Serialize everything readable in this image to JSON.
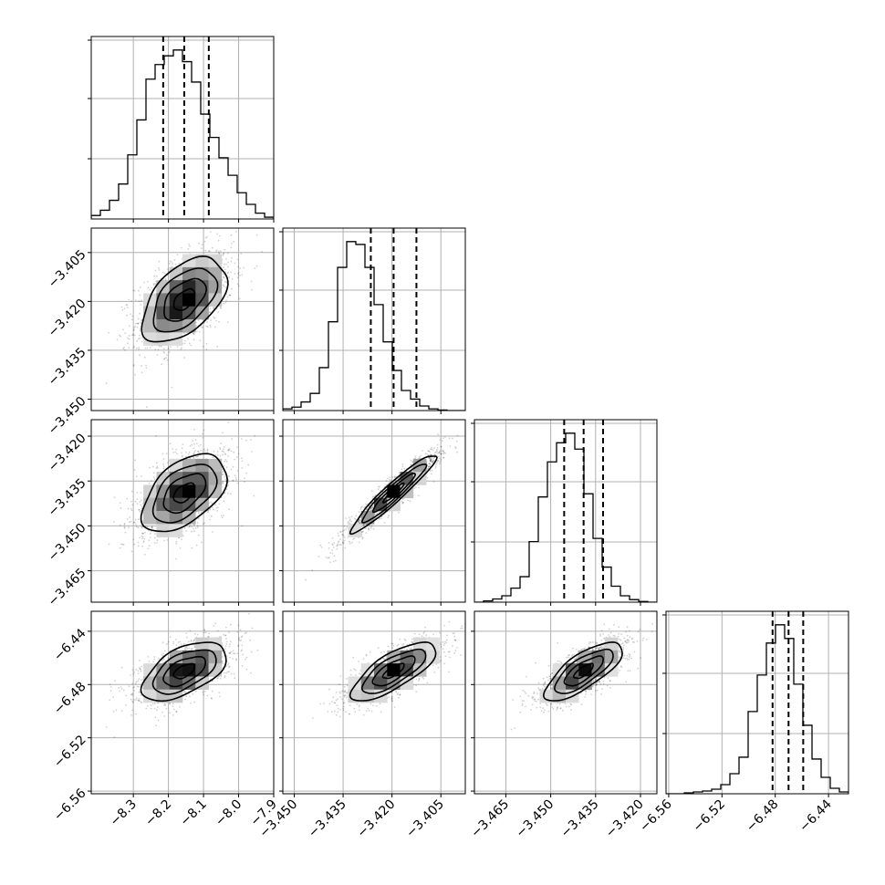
{
  "chart_data": {
    "type": "corner",
    "title": "",
    "grid": true,
    "parameters": [
      {
        "index": 0,
        "median": -8.155,
        "sigma": 0.06,
        "q16": -8.215,
        "q50": -8.155,
        "q84": -8.085,
        "range": [
          -8.42,
          -7.9
        ],
        "ticks": [
          -8.3,
          -8.2,
          -8.1,
          -8.0,
          -7.9
        ],
        "tick_labels": [
          "−8.3",
          "−8.2",
          "−8.1",
          "−8.0",
          "−7.9"
        ]
      },
      {
        "index": 1,
        "median": -3.4195,
        "sigma": 0.0065,
        "q16": -3.4265,
        "q50": -3.4195,
        "q84": -3.4125,
        "range": [
          -3.4535,
          -3.3975
        ],
        "ticks": [
          -3.45,
          -3.435,
          -3.42,
          -3.405
        ],
        "tick_labels": [
          "−3.450",
          "−3.435",
          "−3.420",
          "−3.405"
        ]
      },
      {
        "index": 2,
        "median": -3.439,
        "sigma": 0.0065,
        "q16": -3.4455,
        "q50": -3.439,
        "q84": -3.4325,
        "range": [
          -3.4755,
          -3.4145
        ],
        "ticks": [
          -3.465,
          -3.45,
          -3.435,
          -3.42
        ],
        "tick_labels": [
          "−3.465",
          "−3.450",
          "−3.435",
          "−3.420"
        ]
      },
      {
        "index": 3,
        "median": -6.47,
        "sigma": 0.011,
        "q16": -6.482,
        "q50": -6.47,
        "q84": -6.459,
        "range": [
          -6.562,
          -6.425
        ],
        "ticks": [
          -6.56,
          -6.52,
          -6.48,
          -6.44
        ],
        "tick_labels": [
          "−6.56",
          "−6.52",
          "−6.48",
          "−6.44"
        ]
      }
    ],
    "correlations": [
      {
        "pair": [
          0,
          1
        ],
        "rho": 0.5
      },
      {
        "pair": [
          0,
          2
        ],
        "rho": 0.5
      },
      {
        "pair": [
          0,
          3
        ],
        "rho": 0.55
      },
      {
        "pair": [
          1,
          2
        ],
        "rho": 0.95
      },
      {
        "pair": [
          1,
          3
        ],
        "rho": 0.75
      },
      {
        "pair": [
          2,
          3
        ],
        "rho": 0.75
      }
    ],
    "histograms": [
      {
        "param": 0,
        "bins": 20,
        "counts": [
          6,
          15,
          32,
          60,
          110,
          170,
          240,
          265,
          280,
          290,
          270,
          235,
          180,
          140,
          105,
          75,
          45,
          25,
          10,
          3
        ]
      },
      {
        "param": 1,
        "bins": 20,
        "counts": [
          3,
          6,
          15,
          30,
          75,
          155,
          250,
          295,
          290,
          250,
          185,
          120,
          70,
          35,
          20,
          8,
          3,
          1,
          0,
          0
        ]
      },
      {
        "param": 2,
        "bins": 20,
        "counts": [
          0,
          2,
          5,
          10,
          22,
          40,
          95,
          165,
          220,
          250,
          265,
          240,
          170,
          100,
          55,
          25,
          10,
          4,
          1,
          0
        ]
      },
      {
        "param": 3,
        "bins": 20,
        "counts": [
          0,
          0,
          1,
          2,
          3,
          5,
          10,
          22,
          40,
          90,
          130,
          165,
          185,
          170,
          120,
          75,
          38,
          18,
          6,
          2
        ]
      }
    ],
    "quantiles": [
      0.16,
      0.5,
      0.84
    ],
    "contour_levels_sigma": [
      0.5,
      1,
      1.5,
      2
    ]
  }
}
